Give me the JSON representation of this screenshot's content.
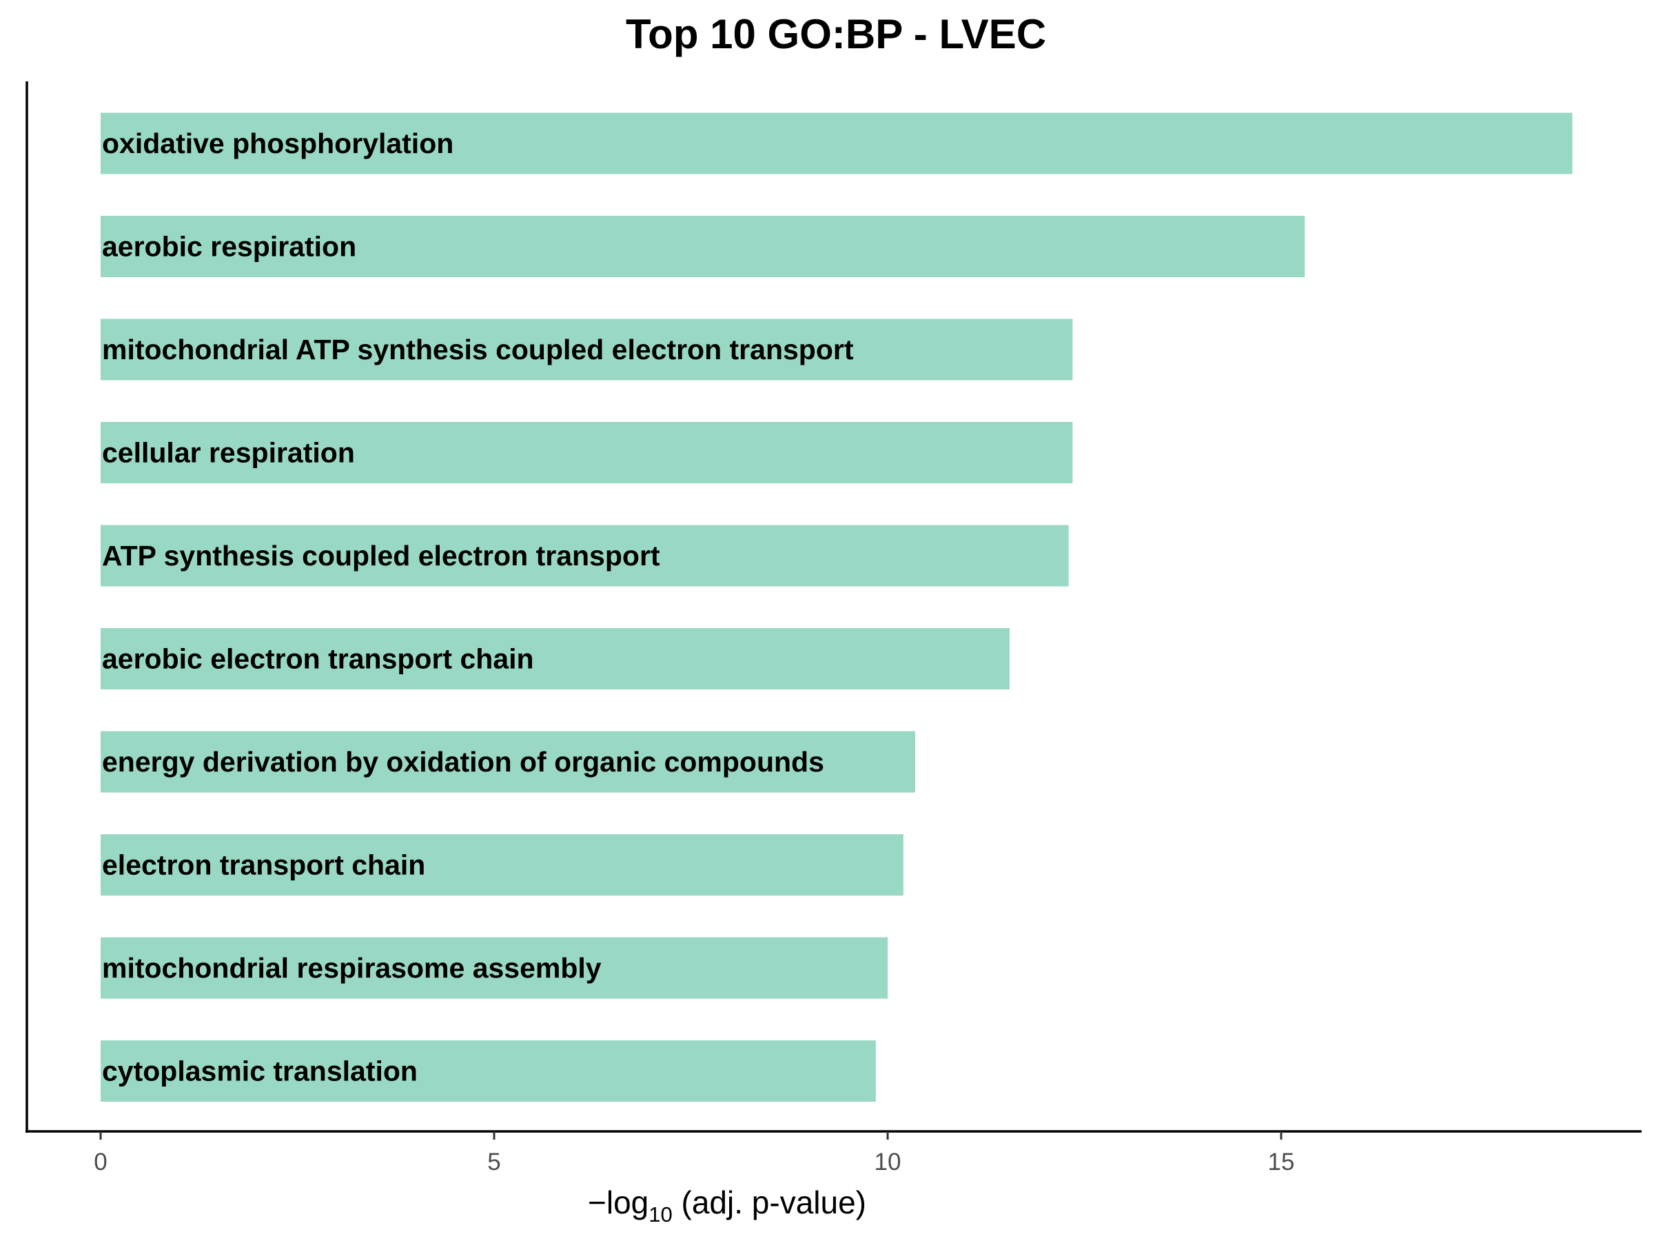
{
  "chart_data": {
    "type": "bar",
    "orientation": "horizontal",
    "title": "Top 10 GO:BP - LVEC",
    "xlabel": {
      "prefix": "−log",
      "subscript": "10",
      "suffix": " (adj. p-value)"
    },
    "ylabel": "",
    "xlim": [
      0,
      19.6
    ],
    "xticks": [
      0,
      5,
      10,
      15
    ],
    "grid": false,
    "bar_color": "#99d8c4",
    "categories": [
      "oxidative phosphorylation",
      "aerobic respiration",
      "mitochondrial ATP synthesis coupled electron transport",
      "cellular respiration",
      "ATP synthesis coupled electron transport",
      "aerobic electron transport chain",
      "energy derivation by oxidation of organic compounds",
      "electron transport chain",
      "mitochondrial respirasome assembly",
      "cytoplasmic translation"
    ],
    "values": [
      18.7,
      15.3,
      12.35,
      12.35,
      12.3,
      11.55,
      10.35,
      10.2,
      10.0,
      9.85
    ]
  }
}
